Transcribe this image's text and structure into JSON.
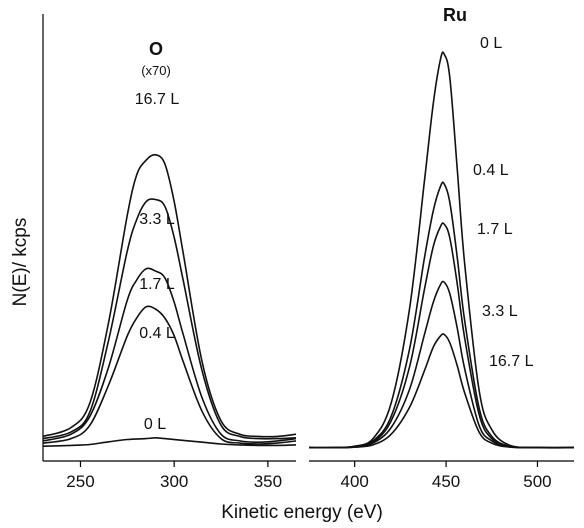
{
  "chart_data": [
    {
      "type": "line",
      "title": "O",
      "subtitle": "(x70)",
      "xlabel": "Kinetic energy (eV)",
      "ylabel": "N(E)/ kcps",
      "xlim": [
        230,
        365
      ],
      "x_ticks": [
        250,
        300,
        350
      ],
      "series": [
        {
          "name": "16.7 L",
          "x": [
            230,
            245,
            255,
            265,
            275,
            280,
            285,
            290,
            295,
            300,
            305,
            315,
            325,
            335,
            345,
            355,
            365
          ],
          "y": [
            5.5,
            7.5,
            13,
            31,
            55,
            64,
            67.3,
            68.5,
            66.5,
            58,
            46,
            22,
            9,
            6,
            5.5,
            5.5,
            6
          ]
        },
        {
          "name": "3.3 L",
          "x": [
            230,
            245,
            255,
            265,
            275,
            280,
            285,
            290,
            295,
            300,
            305,
            315,
            325,
            335,
            345,
            355,
            365
          ],
          "y": [
            5,
            6.5,
            11,
            27,
            47,
            54,
            58,
            58.5,
            57,
            50,
            40,
            20,
            8,
            5.5,
            5,
            5,
            5.2
          ]
        },
        {
          "name": "1.7 L",
          "x": [
            230,
            245,
            255,
            265,
            275,
            280,
            285,
            290,
            295,
            300,
            305,
            315,
            325,
            335,
            345,
            355,
            365
          ],
          "y": [
            4.5,
            6,
            10,
            21,
            36,
            40.5,
            43,
            42.5,
            41,
            35.5,
            28,
            14,
            6,
            4.5,
            4.2,
            4.5,
            5
          ]
        },
        {
          "name": "0.4 L",
          "x": [
            230,
            245,
            255,
            265,
            275,
            280,
            285,
            290,
            295,
            300,
            305,
            315,
            325,
            335,
            345,
            355,
            365
          ],
          "y": [
            4,
            5,
            8,
            17,
            28,
            32,
            34.5,
            34,
            32,
            28,
            22,
            11,
            5,
            4,
            3.8,
            4,
            4.5
          ]
        },
        {
          "name": "0 L",
          "x": [
            230,
            245,
            255,
            265,
            275,
            285,
            290,
            295,
            305,
            315,
            325,
            335,
            345,
            355,
            365
          ],
          "y": [
            3.3,
            3.5,
            3.7,
            4.3,
            4.8,
            5,
            5.2,
            5,
            4.6,
            4.2,
            3.8,
            3.6,
            3.5,
            3.5,
            3.6
          ]
        }
      ]
    },
    {
      "type": "line",
      "title": "Ru",
      "xlabel": "Kinetic energy (eV)",
      "xlim": [
        375,
        520
      ],
      "x_ticks": [
        400,
        450,
        500
      ],
      "series": [
        {
          "name": "0 L",
          "x": [
            375,
            390,
            400,
            410,
            420,
            430,
            438,
            443,
            447,
            449,
            452,
            456,
            460,
            468,
            475,
            485,
            500,
            520
          ],
          "y": [
            3,
            3,
            3.3,
            5,
            13,
            34,
            62,
            80,
            90,
            91,
            86,
            66,
            45,
            16,
            7,
            3.5,
            3,
            3
          ]
        },
        {
          "name": "0.4 L",
          "x": [
            375,
            390,
            400,
            410,
            420,
            430,
            438,
            443,
            447,
            449,
            452,
            456,
            460,
            468,
            475,
            485,
            500,
            520
          ],
          "y": [
            3,
            3,
            3.2,
            4.5,
            10,
            25,
            45,
            56,
            61.5,
            62,
            58,
            46,
            32,
            12,
            5.5,
            3.3,
            3,
            3
          ]
        },
        {
          "name": "1.7 L",
          "x": [
            375,
            390,
            400,
            410,
            420,
            430,
            438,
            443,
            447,
            449,
            452,
            456,
            460,
            468,
            475,
            485,
            500,
            520
          ],
          "y": [
            3,
            3,
            3.2,
            4.2,
            9,
            21,
            38,
            48,
            52.5,
            53,
            50,
            40,
            28,
            10.5,
            5,
            3.2,
            3,
            3
          ]
        },
        {
          "name": "3.3 L",
          "x": [
            375,
            390,
            400,
            410,
            420,
            430,
            438,
            443,
            447,
            449,
            452,
            456,
            460,
            468,
            475,
            485,
            500,
            520
          ],
          "y": [
            3,
            3,
            3.1,
            4,
            7.5,
            16,
            28,
            35.5,
            39.5,
            40,
            37.5,
            30,
            21,
            8,
            4.5,
            3.2,
            3,
            3
          ]
        },
        {
          "name": "16.7 L",
          "x": [
            375,
            390,
            400,
            410,
            420,
            430,
            438,
            443,
            447,
            449,
            452,
            456,
            460,
            468,
            475,
            485,
            500,
            520
          ],
          "y": [
            3,
            3,
            3.1,
            3.6,
            6,
            12,
            20,
            25.5,
            28,
            28.3,
            26.5,
            21.5,
            15.5,
            6.5,
            4,
            3.1,
            3,
            3
          ]
        }
      ]
    }
  ]
}
